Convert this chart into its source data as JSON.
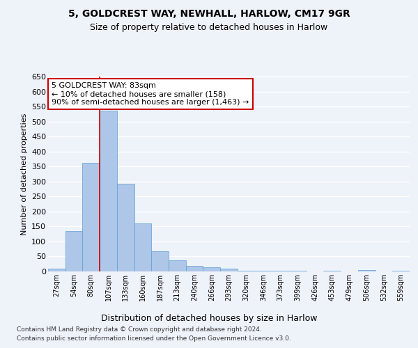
{
  "title1": "5, GOLDCREST WAY, NEWHALL, HARLOW, CM17 9GR",
  "title2": "Size of property relative to detached houses in Harlow",
  "xlabel": "Distribution of detached houses by size in Harlow",
  "ylabel": "Number of detached properties",
  "categories": [
    "27sqm",
    "54sqm",
    "80sqm",
    "107sqm",
    "133sqm",
    "160sqm",
    "187sqm",
    "213sqm",
    "240sqm",
    "266sqm",
    "293sqm",
    "320sqm",
    "346sqm",
    "373sqm",
    "399sqm",
    "426sqm",
    "453sqm",
    "479sqm",
    "506sqm",
    "532sqm",
    "559sqm"
  ],
  "values": [
    10,
    135,
    362,
    537,
    292,
    160,
    68,
    38,
    18,
    15,
    10,
    3,
    3,
    3,
    3,
    0,
    3,
    0,
    5,
    0,
    3
  ],
  "bar_color": "#aec6e8",
  "bar_edge_color": "#5a9fd4",
  "ylim": [
    0,
    650
  ],
  "yticks": [
    0,
    50,
    100,
    150,
    200,
    250,
    300,
    350,
    400,
    450,
    500,
    550,
    600,
    650
  ],
  "annotation_text": "5 GOLDCREST WAY: 83sqm\n← 10% of detached houses are smaller (158)\n90% of semi-detached houses are larger (1,463) →",
  "footer1": "Contains HM Land Registry data © Crown copyright and database right 2024.",
  "footer2": "Contains public sector information licensed under the Open Government Licence v3.0.",
  "background_color": "#eef2f9",
  "plot_bg_color": "#eef2f9",
  "grid_color": "#ffffff",
  "annotation_box_color": "#ffffff",
  "annotation_box_edge": "#cc0000",
  "redline_index": 2
}
